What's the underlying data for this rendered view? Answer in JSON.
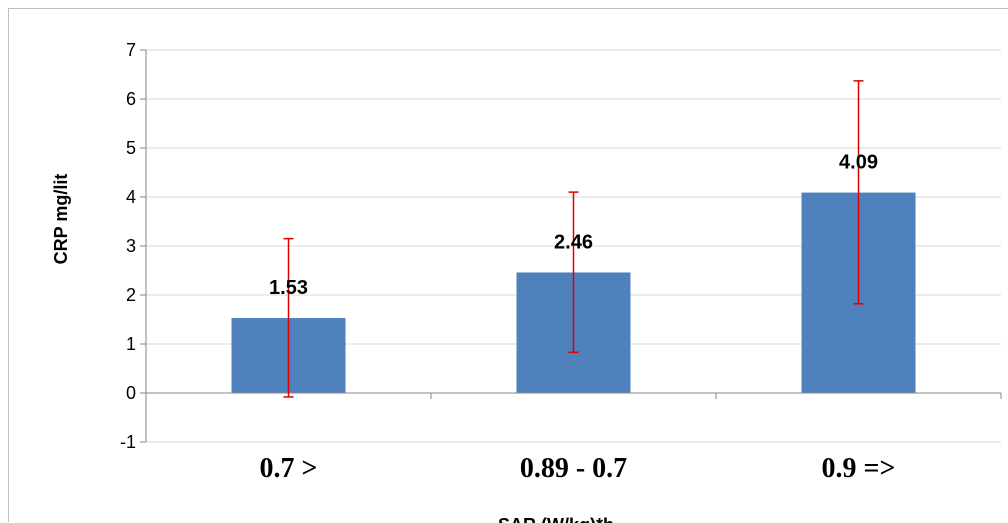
{
  "chart_data": {
    "type": "bar",
    "categories": [
      "0.7 >",
      "0.89 - 0.7",
      "0.9 =>"
    ],
    "values": [
      1.53,
      2.46,
      4.09
    ],
    "error_bars": [
      {
        "low": -0.08,
        "high": 3.15
      },
      {
        "low": 0.83,
        "high": 4.1
      },
      {
        "low": 1.82,
        "high": 6.37
      }
    ],
    "data_labels": [
      "1.53",
      "2.46",
      "4.09"
    ],
    "xlabel": "SAR (W/kg)*h",
    "ylabel": "CRP mg/lit",
    "ylim": [
      -1,
      7
    ],
    "yticks": [
      -1,
      0,
      1,
      2,
      3,
      4,
      5,
      6,
      7
    ],
    "grid": true,
    "legend": "none",
    "colors": {
      "bar": "#4f81bd",
      "error_bar": "#e00000",
      "grid": "#d9d9d9",
      "axis": "#868686"
    }
  }
}
